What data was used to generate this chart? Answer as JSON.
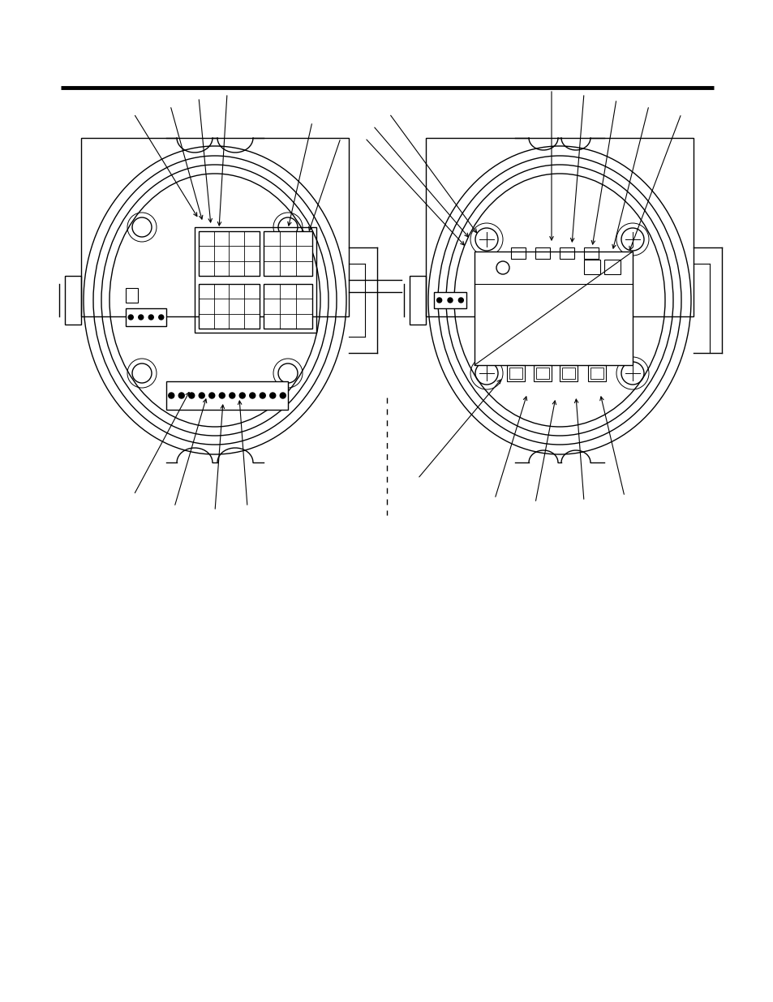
{
  "bg_color": "#ffffff",
  "line_color": "#000000",
  "fig_width": 9.54,
  "fig_height": 12.35,
  "dpi": 100
}
